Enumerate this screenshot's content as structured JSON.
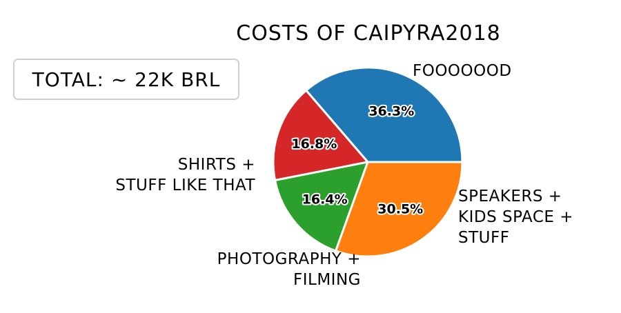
{
  "chart_data": {
    "type": "pie",
    "title": "COSTS OF CAIPYRA2018",
    "annotation": "TOTAL: ~ 22K BRL",
    "slices": [
      {
        "label": [
          "FOOOOOOD"
        ],
        "value": 36.3,
        "pct_label": "36.3%",
        "color": "#1f77b4"
      },
      {
        "label": [
          "SPEAKERS +",
          "KIDS SPACE +",
          "STUFF"
        ],
        "value": 16.8,
        "pct_label": "16.8%",
        "color": "#d62728"
      },
      {
        "label": [
          "PHOTOGRAPHY +",
          "FILMING"
        ],
        "value": 16.4,
        "pct_label": "16.4%",
        "color": "#2ca02c"
      },
      {
        "label": [
          "SHIRTS +",
          "STUFF LIKE THAT"
        ],
        "value": 30.5,
        "pct_label": "30.5%",
        "color": "#ff7f0e"
      }
    ],
    "start_angle_deg": 0,
    "direction": "counterclockwise",
    "legend": "none"
  }
}
